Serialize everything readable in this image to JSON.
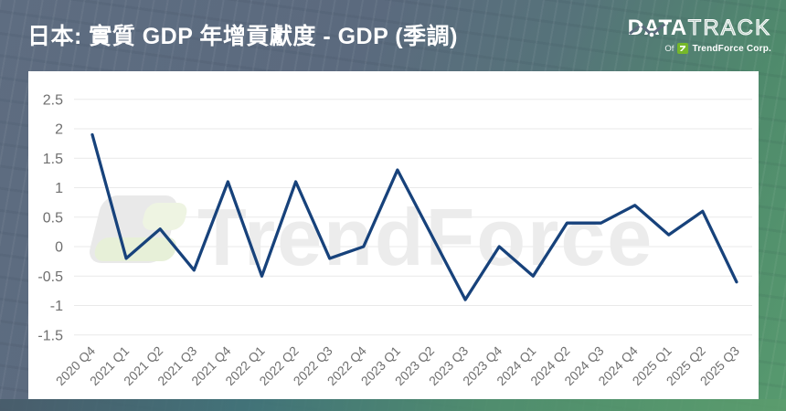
{
  "header": {
    "title": "日本: 實質 GDP 年增貢獻度 - GDP (季調)",
    "logo": {
      "part1": "DATA",
      "part2": "TRACK",
      "sub_prefix": "Of",
      "sub_company": "TrendForce Corp.",
      "badge_icon": "trendforce-green-flag",
      "motif_icon": "chart-line-with-dots"
    }
  },
  "watermark": {
    "text": "TrendForce",
    "mark_icon": "trendforce-flag-mark"
  },
  "colors": {
    "background_slate": "#5e6d81",
    "background_green": "#579a6e",
    "card": "#ffffff",
    "line": "#17427b",
    "grid": "#e9e9e9",
    "tick_text": "#6f6f6f",
    "title_text": "#ffffff",
    "trendforce_green": "#76b82a",
    "watermark_gray": "#ececec"
  },
  "chart_data": {
    "type": "line",
    "title": "日本: 實質 GDP 年增貢獻度 - GDP (季調)",
    "xlabel": "",
    "ylabel": "",
    "ylim": [
      -1.5,
      2.5
    ],
    "grid": true,
    "legend": "none",
    "line_color": "#17427b",
    "categories": [
      "2020 Q4",
      "2021 Q1",
      "2021 Q2",
      "2021 Q3",
      "2021 Q4",
      "2022 Q1",
      "2022 Q2",
      "2022 Q3",
      "2022 Q4",
      "2023 Q1",
      "2023 Q2",
      "2023 Q3",
      "2023 Q4",
      "2024 Q1",
      "2024 Q2",
      "2024 Q3",
      "2024 Q4",
      "2025 Q1",
      "2025 Q2",
      "2025 Q3"
    ],
    "values": [
      1.9,
      -0.2,
      0.3,
      -0.4,
      1.1,
      -0.5,
      1.1,
      -0.2,
      0,
      1.3,
      0.2,
      -0.9,
      0,
      -0.5,
      0.4,
      0.4,
      0.7,
      0.2,
      0.6,
      -0.6
    ],
    "yticks": [
      {
        "value": 2.5,
        "label": "2.5"
      },
      {
        "value": 2,
        "label": "2"
      },
      {
        "value": 1.5,
        "label": "1.5"
      },
      {
        "value": 1,
        "label": "1"
      },
      {
        "value": 0.5,
        "label": "0.5"
      },
      {
        "value": 0,
        "label": "0"
      },
      {
        "value": -0.5,
        "label": "-0.5"
      },
      {
        "value": -1,
        "label": "-1"
      },
      {
        "value": -1.5,
        "label": "-1.5"
      }
    ]
  }
}
